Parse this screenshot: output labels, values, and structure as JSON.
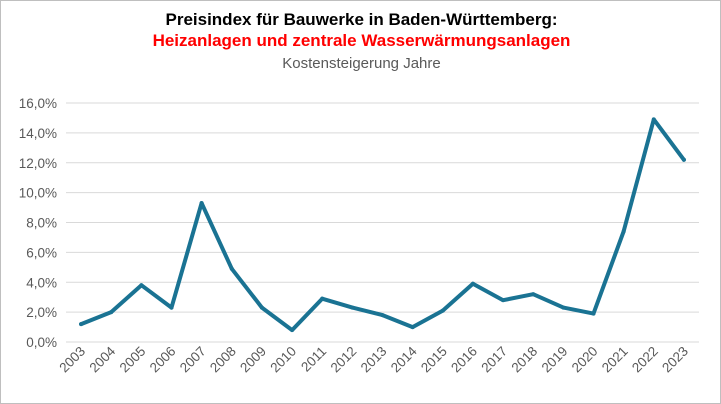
{
  "chart_data": {
    "type": "line",
    "title": "Preisindex für Bauwerke in Baden-Württemberg:",
    "subtitle": "Heizanlagen und zentrale Wasserwärmungsanlagen",
    "subtitle2": "Kostensteigerung Jahre",
    "xlabel": "",
    "ylabel": "",
    "ylim": [
      0,
      16
    ],
    "ytick_labels": [
      "0,0%",
      "2,0%",
      "4,0%",
      "6,0%",
      "8,0%",
      "10,0%",
      "12,0%",
      "14,0%",
      "16,0%"
    ],
    "categories": [
      "2003",
      "2004",
      "2005",
      "2006",
      "2007",
      "2008",
      "2009",
      "2010",
      "2011",
      "2012",
      "2013",
      "2014",
      "2015",
      "2016",
      "2017",
      "2018",
      "2019",
      "2020",
      "2021",
      "2022",
      "2023"
    ],
    "series": [
      {
        "name": "Kostensteigerung",
        "values": [
          1.2,
          2.0,
          3.8,
          2.3,
          9.3,
          4.9,
          2.3,
          0.8,
          2.9,
          2.3,
          1.8,
          1.0,
          2.1,
          3.9,
          2.8,
          3.2,
          2.3,
          1.9,
          7.4,
          14.9,
          12.2
        ]
      }
    ],
    "colors": {
      "line": "#1a7393",
      "grid": "#d9d9d9",
      "title": "#000000",
      "subtitle": "#ff0000",
      "subtitle2": "#595959"
    },
    "grid": true,
    "legend": "none"
  }
}
